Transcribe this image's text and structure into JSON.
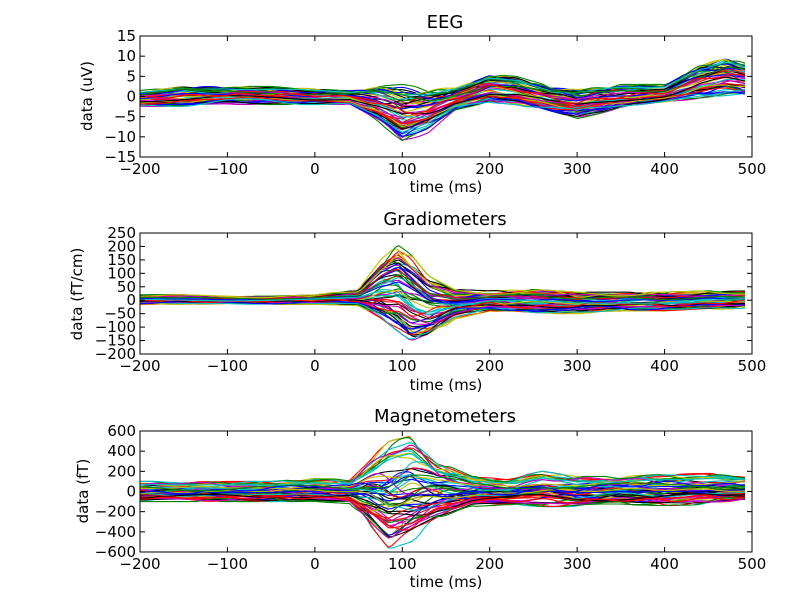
{
  "figure": {
    "background": "#ffffff"
  },
  "chart_data": [
    {
      "type": "line",
      "title": "EEG",
      "xlabel": "time (ms)",
      "ylabel": "data (uV)",
      "xlim": [
        -200,
        500
      ],
      "ylim": [
        -15,
        15
      ],
      "xticks": [
        -200,
        -100,
        0,
        100,
        200,
        300,
        400,
        500
      ],
      "yticks": [
        -15,
        -10,
        -5,
        0,
        5,
        10,
        15
      ],
      "grid": false,
      "legend": "none",
      "series_shown": 60,
      "series_colors": [
        "#0000ff",
        "#008000",
        "#ff0000",
        "#00bfbf",
        "#bf00bf",
        "#bfbf00",
        "#000000"
      ],
      "x": [
        -200,
        -150,
        -100,
        -50,
        0,
        40,
        70,
        100,
        130,
        160,
        200,
        230,
        270,
        300,
        350,
        400,
        440,
        470,
        495
      ],
      "envelope_max": [
        1.5,
        2.5,
        2.5,
        2.5,
        2,
        1.5,
        2.5,
        3,
        2,
        2.5,
        5.5,
        5,
        2.5,
        2,
        3,
        3,
        8,
        10,
        8
      ],
      "envelope_min": [
        -2.5,
        -2.5,
        -2,
        -2,
        -2,
        -2,
        -6,
        -11.5,
        -9,
        -4,
        -1.5,
        -2,
        -4,
        -5.5,
        -3,
        -1.5,
        -0.5,
        0,
        0
      ]
    },
    {
      "type": "line",
      "title": "Gradiometers",
      "xlabel": "time (ms)",
      "ylabel": "data (fT/cm)",
      "xlim": [
        -200,
        500
      ],
      "ylim": [
        -200,
        250
      ],
      "xticks": [
        -200,
        -100,
        0,
        100,
        200,
        300,
        400,
        500
      ],
      "yticks": [
        -200,
        -150,
        -100,
        -50,
        0,
        50,
        100,
        150,
        200,
        250
      ],
      "grid": false,
      "legend": "none",
      "series_shown": 60,
      "series_colors": [
        "#0000ff",
        "#008000",
        "#ff0000",
        "#00bfbf",
        "#bf00bf",
        "#bfbf00",
        "#000000"
      ],
      "x": [
        -200,
        -150,
        -100,
        -50,
        0,
        50,
        75,
        95,
        110,
        130,
        160,
        200,
        250,
        300,
        350,
        400,
        450,
        495
      ],
      "envelope_max": [
        20,
        20,
        15,
        15,
        20,
        40,
        150,
        205,
        170,
        90,
        40,
        35,
        40,
        30,
        30,
        30,
        35,
        35
      ],
      "envelope_min": [
        -15,
        -15,
        -15,
        -15,
        -15,
        -20,
        -70,
        -120,
        -160,
        -140,
        -70,
        -40,
        -50,
        -50,
        -40,
        -40,
        -35,
        -30
      ]
    },
    {
      "type": "line",
      "title": "Magnetometers",
      "xlabel": "time (ms)",
      "ylabel": "data (fT)",
      "xlim": [
        -200,
        500
      ],
      "ylim": [
        -600,
        600
      ],
      "xticks": [
        -200,
        -100,
        0,
        100,
        200,
        300,
        400,
        500
      ],
      "yticks": [
        -600,
        -400,
        -200,
        0,
        200,
        400,
        600
      ],
      "grid": false,
      "legend": "none",
      "series_shown": 60,
      "series_colors": [
        "#0000ff",
        "#008000",
        "#ff0000",
        "#00bfbf",
        "#bf00bf",
        "#bfbf00",
        "#000000"
      ],
      "x": [
        -200,
        -150,
        -100,
        -50,
        0,
        40,
        60,
        85,
        110,
        140,
        180,
        220,
        260,
        300,
        350,
        400,
        450,
        495
      ],
      "envelope_max": [
        100,
        100,
        100,
        100,
        130,
        120,
        300,
        500,
        550,
        300,
        150,
        130,
        200,
        150,
        150,
        170,
        180,
        160
      ],
      "envelope_min": [
        -100,
        -100,
        -100,
        -100,
        -100,
        -120,
        -300,
        -570,
        -500,
        -300,
        -150,
        -130,
        -150,
        -150,
        -130,
        -140,
        -130,
        -100
      ]
    }
  ]
}
